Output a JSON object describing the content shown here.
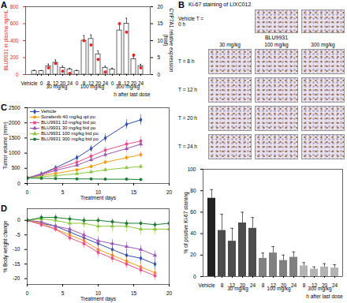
{
  "chart_data": [
    {
      "panel": "A",
      "type": "bar",
      "categories": [
        "Vehicle",
        "0",
        "8",
        "12",
        "20",
        "24",
        "0",
        "8",
        "12",
        "20",
        "24",
        "0",
        "8",
        "12",
        "20",
        "24"
      ],
      "group": [
        null,
        "30 mg/kg",
        "30 mg/kg",
        "30 mg/kg",
        "30 mg/kg",
        "30 mg/kg",
        "100 mg/kg",
        "100 mg/kg",
        "100 mg/kg",
        "100 mg/kg",
        "100 mg/kg",
        "300 mg/kg",
        "300 mg/kg",
        "300 mg/kg",
        "300 mg/kg",
        "300 mg/kg"
      ],
      "x_label": "h after last dose",
      "y_label": "BLU9931 in plasma ng/mL",
      "y2_label": "CYP7A1 relative expression (fold)",
      "ylim": [
        0,
        800
      ],
      "yticks": [
        0,
        200,
        400,
        600,
        800
      ],
      "y2lim": [
        0,
        20
      ],
      "y2ticks": [
        0,
        5,
        10,
        15,
        20
      ],
      "series": [
        {
          "type": "bar",
          "axis": "y2",
          "color": "#ffffff",
          "values": [
            1,
            1,
            2.5,
            3.5,
            2,
            1.5,
            1,
            10,
            10.5,
            6,
            2,
            1.5,
            13,
            15,
            4.5,
            2.5
          ],
          "errors": [
            0.3,
            0.2,
            0.6,
            0.8,
            0.5,
            0.4,
            0.3,
            1.5,
            1.2,
            1,
            0.5,
            0.4,
            1.8,
            1.6,
            0.8,
            0.5
          ]
        },
        {
          "type": "scatter",
          "marker": "circle",
          "color": "#e8262a",
          "values": [
            null,
            null,
            80,
            130,
            40,
            15,
            null,
            400,
            350,
            180,
            30,
            null,
            600,
            500,
            230,
            80
          ]
        }
      ]
    },
    {
      "panel": "B",
      "type": "bar",
      "images": {
        "title": "Ki-67 staining of LIXC012",
        "reference_label": "Vehicle T = 0 h",
        "drug": "BLU9931",
        "columns": [
          "30 mg/kg",
          "100 mg/kg",
          "300 mg/kg"
        ],
        "rows": [
          "T = 8 h",
          "T = 12 h",
          "T = 20 h",
          "T = 24 h"
        ]
      },
      "categories": [
        "Vehicle",
        "8",
        "12",
        "20",
        "24",
        "8",
        "12",
        "20",
        "24",
        "8",
        "12",
        "20",
        "24"
      ],
      "group": [
        null,
        "30 mg/kg",
        "30 mg/kg",
        "30 mg/kg",
        "30 mg/kg",
        "100 mg/kg",
        "100 mg/kg",
        "100 mg/kg",
        "100 mg/kg",
        "300 mg/kg",
        "300 mg/kg",
        "300 mg/kg",
        "300 mg/kg"
      ],
      "values": [
        73,
        43,
        33,
        50,
        45,
        17,
        22,
        15,
        18,
        10,
        7,
        9,
        8
      ],
      "errors": [
        8,
        15,
        12,
        10,
        10,
        5,
        6,
        5,
        5,
        3,
        2,
        3,
        3
      ],
      "colors": [
        "#222222",
        "#4d4d4d",
        "#4d4d4d",
        "#4d4d4d",
        "#4d4d4d",
        "#808080",
        "#808080",
        "#808080",
        "#808080",
        "#b3b3b3",
        "#b3b3b3",
        "#b3b3b3",
        "#b3b3b3"
      ],
      "x_label": "h after last dose",
      "y_label": "% of positive Ki-67 staining",
      "ylim": [
        0,
        100
      ],
      "yticks": [
        0,
        20,
        40,
        60,
        80,
        100
      ]
    },
    {
      "panel": "C",
      "type": "line",
      "x": [
        0,
        2,
        4,
        7,
        9,
        11,
        14,
        16
      ],
      "xlim": [
        0,
        20
      ],
      "xticks": [
        0,
        5,
        10,
        15,
        20
      ],
      "ylim": [
        0,
        2500
      ],
      "yticks": [
        0,
        500,
        1000,
        1500,
        2000,
        2500
      ],
      "x_label": "Treatment days",
      "y_label": "Tumor volume (mm³)",
      "legend": "top-left",
      "series": [
        {
          "name": "Vehicle",
          "color": "#2f4fa8",
          "marker": "diamond",
          "values": [
            180,
            320,
            520,
            850,
            1150,
            1500,
            1950,
            2100
          ],
          "errors": [
            20,
            40,
            60,
            90,
            110,
            140,
            160,
            170
          ]
        },
        {
          "name": "Sorafenib 40 mg/kg qd po",
          "color": "#f39c12",
          "marker": "circle",
          "values": [
            180,
            260,
            330,
            450,
            560,
            700,
            850,
            950
          ],
          "errors": [
            20,
            30,
            40,
            50,
            60,
            80,
            90,
            100
          ]
        },
        {
          "name": "BLU9931 10 mg/kg bid po",
          "color": "#e8508a",
          "marker": "square",
          "values": [
            180,
            300,
            480,
            700,
            900,
            1100,
            1300,
            1400
          ],
          "errors": [
            20,
            35,
            50,
            70,
            90,
            110,
            130,
            140
          ]
        },
        {
          "name": "BLU9931 30 mg/kg bid po",
          "color": "#9b59b6",
          "marker": "triangle",
          "values": [
            180,
            290,
            430,
            600,
            780,
            950,
            1150,
            1300
          ],
          "errors": [
            20,
            30,
            45,
            60,
            80,
            100,
            120,
            130
          ]
        },
        {
          "name": "BLU9931 100 mg/kg bid po",
          "color": "#8cc63f",
          "marker": "triangle",
          "values": [
            180,
            220,
            260,
            320,
            380,
            450,
            520,
            560
          ],
          "errors": [
            20,
            25,
            30,
            35,
            40,
            50,
            60,
            70
          ]
        },
        {
          "name": "BLU9931 300 mg/kg bid po",
          "color": "#1e7b34",
          "marker": "circle",
          "values": [
            180,
            170,
            160,
            150,
            150,
            140,
            140,
            130
          ],
          "errors": [
            20,
            20,
            20,
            20,
            20,
            20,
            20,
            20
          ]
        }
      ]
    },
    {
      "panel": "D",
      "type": "line",
      "x": [
        0,
        2,
        4,
        6,
        8,
        10,
        12,
        14,
        16,
        18,
        20
      ],
      "xlim": [
        0,
        20
      ],
      "xticks": [
        0,
        5,
        10,
        15,
        20
      ],
      "ylim": [
        -22,
        4
      ],
      "yticks": [
        -20,
        -15,
        -10,
        -5,
        0
      ],
      "x_label": "Treatment days",
      "y_label": "% Body weight change",
      "series": [
        {
          "name": "Vehicle",
          "color": "#2f4fa8",
          "marker": "diamond",
          "values": [
            0,
            -1,
            -2,
            -4,
            -6,
            -8,
            -10,
            -12,
            -13,
            -15,
            null
          ],
          "errors": [
            0.5,
            1,
            1,
            1.2,
            1.5,
            1.5,
            1.8,
            2,
            2,
            2,
            null
          ]
        },
        {
          "name": "Sorafenib 40 mg/kg qd po",
          "color": "#f39c12",
          "marker": "circle",
          "values": [
            0,
            -1,
            -3,
            -5,
            -7,
            -10,
            -12,
            -14,
            -16,
            -18,
            null
          ],
          "errors": [
            0.5,
            1,
            1,
            1.2,
            1.5,
            1.5,
            1.5,
            1.5,
            1.5,
            1.5,
            null
          ]
        },
        {
          "name": "BLU9931 10 mg/kg bid po",
          "color": "#e8508a",
          "marker": "square",
          "values": [
            0,
            -1.5,
            -3,
            -6,
            -8,
            -11,
            -13,
            -15,
            -17,
            -19,
            null
          ],
          "errors": [
            0.5,
            1,
            1,
            1.2,
            1.5,
            1.5,
            1.5,
            1.5,
            1.5,
            1.5,
            null
          ]
        },
        {
          "name": "BLU9931 30 mg/kg bid po",
          "color": "#9b59b6",
          "marker": "triangle",
          "values": [
            0,
            -0.5,
            -2,
            -3,
            -5,
            -7,
            -8,
            -9,
            -10,
            -12,
            null
          ],
          "errors": [
            0.5,
            1,
            1,
            1.2,
            1.5,
            1.5,
            1.5,
            1.5,
            1.5,
            1.5,
            null
          ]
        },
        {
          "name": "BLU9931 100 mg/kg bid po",
          "color": "#8cc63f",
          "marker": "triangle",
          "values": [
            0,
            0.5,
            0,
            -1,
            -1,
            -2,
            -2,
            -2,
            -3,
            -3,
            -3
          ],
          "errors": [
            0.5,
            1,
            1.5,
            1.5,
            1.5,
            2,
            2,
            2,
            2,
            2,
            2
          ]
        },
        {
          "name": "BLU9931 300 mg/kg bid po",
          "color": "#1e7b34",
          "marker": "circle",
          "values": [
            0,
            1,
            1,
            0.5,
            0,
            0,
            -0.5,
            -1,
            -1,
            -1.5,
            -1
          ],
          "errors": [
            0.5,
            1,
            1,
            1,
            1,
            1,
            1,
            1,
            1,
            1,
            1
          ]
        }
      ]
    }
  ]
}
